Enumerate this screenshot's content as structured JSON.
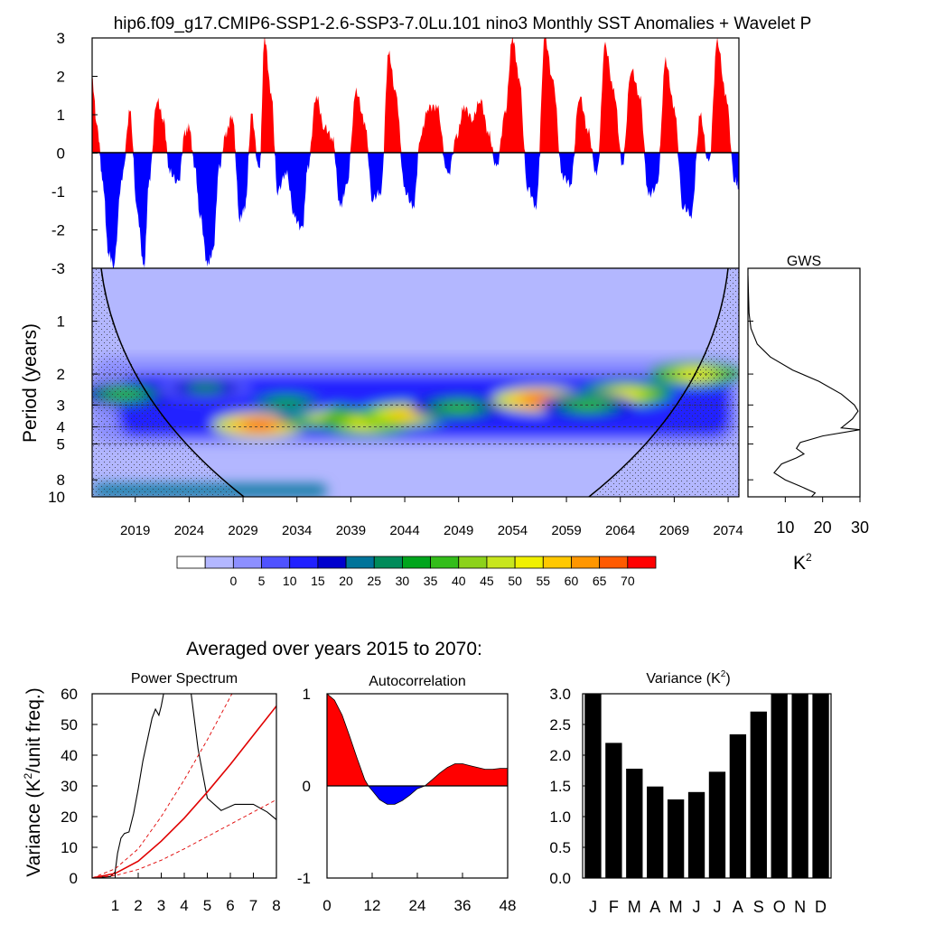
{
  "title": "hip6.f09_g17.CMIP6-SSP1-2.6-SSP3-7.0Lu.101 nino3 Monthly SST Anomalies + Wavelet P",
  "section_title": "Averaged over years 2015 to 2070:",
  "colors": {
    "positive": "#ff0000",
    "negative": "#0000ff",
    "background_level": "#b3b7ff"
  },
  "chart_data": [
    {
      "id": "timeseries",
      "type": "area",
      "title": "",
      "xlabel": "",
      "ylabel": "",
      "xlim": [
        2015,
        2075
      ],
      "ylim": [
        -3,
        3
      ],
      "yticks": [
        "3",
        "2",
        "1",
        "0",
        "-1",
        "-2",
        "-3"
      ],
      "fill_above": "red",
      "fill_below": "blue",
      "series": [
        {
          "x": [
            2015.0,
            2015.5,
            2016.0,
            2016.5,
            2017.0,
            2017.8,
            2018.5,
            2019.2,
            2019.8,
            2020.3,
            2021.0,
            2021.6,
            2022.2,
            2023.0,
            2023.6,
            2024.0,
            2024.5,
            2025.0,
            2025.7,
            2026.2,
            2026.8,
            2027.4,
            2028.0,
            2028.7,
            2029.2,
            2029.8,
            2030.5,
            2031.0,
            2031.6,
            2032.2,
            2033.0,
            2033.8,
            2034.5,
            2035.0,
            2035.8,
            2036.5,
            2037.3,
            2038.0,
            2038.6,
            2039.5,
            2040.3,
            2041.0,
            2041.8,
            2042.5,
            2043.2,
            2044.0,
            2044.8,
            2045.5,
            2046.2,
            2047.0,
            2048.0,
            2048.8,
            2049.5,
            2050.3,
            2051.0,
            2051.8,
            2052.5,
            2053.3,
            2054.0,
            2054.6,
            2055.4,
            2056.2,
            2057.0,
            2057.8,
            2058.6,
            2059.4,
            2060.2,
            2061.0,
            2061.8,
            2062.6,
            2063.4,
            2064.2,
            2065.0,
            2065.8,
            2066.6,
            2067.4,
            2068.2,
            2069.0,
            2069.8,
            2070.6,
            2071.4,
            2072.2,
            2073.0,
            2073.8,
            2074.6,
            2075.0
          ],
          "y": [
            1.9,
            0.6,
            -0.8,
            -2.6,
            -2.9,
            -0.6,
            1.1,
            -1.6,
            -3.0,
            -0.7,
            1.4,
            0.9,
            -0.5,
            -0.8,
            0.5,
            0.7,
            -0.3,
            -1.6,
            -2.9,
            -2.6,
            -0.4,
            0.5,
            1.0,
            -1.7,
            -1.4,
            1.0,
            -0.5,
            3.0,
            1.6,
            -1.0,
            -0.5,
            -1.7,
            -2.0,
            -0.4,
            1.5,
            0.7,
            0.4,
            -1.4,
            -0.9,
            1.6,
            0.8,
            -1.2,
            -1.0,
            2.6,
            1.5,
            -1.0,
            -1.4,
            0.5,
            1.2,
            1.2,
            -0.6,
            0.4,
            1.2,
            0.9,
            1.4,
            0.5,
            -0.4,
            1.0,
            3.0,
            2.0,
            -0.9,
            -1.4,
            3.0,
            1.8,
            -0.6,
            -0.8,
            1.5,
            0.6,
            -0.6,
            2.8,
            1.6,
            -0.3,
            2.2,
            1.5,
            -1.1,
            -0.9,
            2.4,
            1.2,
            -1.4,
            -1.6,
            1.0,
            -0.3,
            2.9,
            1.5,
            -0.7,
            -0.9
          ]
        }
      ]
    },
    {
      "id": "wavelet",
      "type": "heatmap",
      "title": "",
      "ylabel": "Period (years)",
      "xticks": [
        "2019",
        "2024",
        "2029",
        "2034",
        "2039",
        "2044",
        "2049",
        "2054",
        "2059",
        "2064",
        "2069",
        "2074"
      ],
      "xtick_values": [
        2019,
        2024,
        2029,
        2034,
        2039,
        2044,
        2049,
        2054,
        2059,
        2064,
        2069,
        2074
      ],
      "xlim": [
        2015,
        2075
      ],
      "yticks": [
        "1",
        "2",
        "3",
        "4",
        "5",
        "8",
        "10"
      ],
      "ytick_values": [
        1,
        2,
        3,
        4,
        5,
        8,
        10
      ],
      "ylim": [
        0.5,
        10
      ],
      "log_y": true,
      "dashed_periods": [
        2,
        3,
        4,
        5
      ],
      "colorbar_labels": [
        "0",
        "5",
        "10",
        "15",
        "20",
        "25",
        "30",
        "35",
        "40",
        "45",
        "50",
        "55",
        "60",
        "65",
        "70"
      ],
      "colorbar_colors": [
        "#ffffff",
        "#b3b7ff",
        "#8c8fff",
        "#4f52ff",
        "#2020ff",
        "#0000cd",
        "#00749a",
        "#008b5a",
        "#00a51c",
        "#33bd1a",
        "#8cd21a",
        "#c8e61e",
        "#f0f000",
        "#ffc800",
        "#ff9600",
        "#ff5a00",
        "#ff0000"
      ],
      "blobs": [
        {
          "year": 2030.5,
          "period": 3.9,
          "value": 70
        },
        {
          "year": 2036.5,
          "period": 3.5,
          "value": 50
        },
        {
          "year": 2040.5,
          "period": 3.8,
          "value": 55
        },
        {
          "year": 2044.0,
          "period": 3.4,
          "value": 60
        },
        {
          "year": 2049.0,
          "period": 3.1,
          "value": 40
        },
        {
          "year": 2056.5,
          "period": 2.8,
          "value": 70
        },
        {
          "year": 2064.5,
          "period": 2.6,
          "value": 55
        },
        {
          "year": 2071.0,
          "period": 2.0,
          "value": 55
        },
        {
          "year": 2018.0,
          "period": 2.6,
          "value": 40
        },
        {
          "year": 2025.5,
          "period": 2.4,
          "value": 30
        },
        {
          "year": 2033.0,
          "period": 2.9,
          "value": 35
        },
        {
          "year": 2061.0,
          "period": 3.0,
          "value": 40
        }
      ]
    },
    {
      "id": "gws",
      "type": "line",
      "title": "GWS",
      "xlabel": "K",
      "xlabel_sup": "2",
      "xticks": [
        "10",
        "20",
        "30"
      ],
      "xtick_values": [
        10,
        20,
        30
      ],
      "xlim": [
        0,
        30
      ],
      "ylim": [
        0.5,
        10
      ],
      "log_y": true,
      "series": [
        {
          "x": [
            0.0,
            0.3,
            0.8,
            2.5,
            6.0,
            12.0,
            19.0,
            25.0,
            28.5,
            29.5,
            28.0,
            25.0,
            30.0,
            20.0,
            14.0,
            13.0,
            15.0,
            13.0,
            9.0,
            7.0,
            10.0,
            14.0,
            18.0,
            17.0
          ],
          "y": [
            0.55,
            0.9,
            1.1,
            1.35,
            1.6,
            1.9,
            2.2,
            2.6,
            3.0,
            3.25,
            3.6,
            4.05,
            4.15,
            4.5,
            4.9,
            5.3,
            5.7,
            6.0,
            6.5,
            7.3,
            8.0,
            8.7,
            9.5,
            10.0
          ]
        }
      ]
    },
    {
      "id": "power_spectrum",
      "type": "line",
      "title": "Power Spectrum",
      "ylabel": "Variance (K",
      "ylabel_sup": "2",
      "ylabel_tail": "/unit freq.)",
      "xticks": [
        "1",
        "2",
        "3",
        "4",
        "5",
        "6",
        "7",
        "8"
      ],
      "xtick_values": [
        1,
        2,
        3,
        4,
        5,
        6,
        7,
        8
      ],
      "yticks": [
        "0",
        "10",
        "20",
        "30",
        "40",
        "50",
        "60"
      ],
      "ytick_values": [
        0,
        10,
        20,
        30,
        40,
        50,
        60
      ],
      "xlim": [
        0,
        8
      ],
      "ylim": [
        0,
        60
      ],
      "series": [
        {
          "style": "black",
          "x": [
            0.0,
            0.8,
            1.0,
            1.1,
            1.25,
            1.4,
            1.6,
            1.8,
            2.0,
            2.2,
            2.4,
            2.6,
            2.75,
            2.9,
            3.0,
            3.1,
            3.25,
            3.4,
            4.3,
            4.6,
            5.0,
            5.6,
            6.2,
            7.0,
            7.6,
            8.0
          ],
          "y": [
            0.0,
            0.5,
            2.0,
            8.0,
            13.0,
            14.5,
            15.0,
            21.0,
            29.0,
            38.0,
            45.0,
            52.0,
            55.0,
            53.0,
            56.0,
            60.0,
            62.0,
            62.0,
            60.0,
            42.0,
            26.0,
            22.0,
            24.0,
            24.0,
            21.5,
            19.0
          ]
        },
        {
          "style": "red",
          "x": [
            0.0,
            1.0,
            2.0,
            3.0,
            4.0,
            5.0,
            6.0,
            7.0,
            8.0
          ],
          "y": [
            0.0,
            1.5,
            5.5,
            12.0,
            19.5,
            28.0,
            37.0,
            46.5,
            56.0
          ]
        },
        {
          "style": "red-dashed",
          "x": [
            0.0,
            1.0,
            2.0,
            3.0,
            4.0,
            5.0,
            6.0,
            6.5
          ],
          "y": [
            0.0,
            3.0,
            9.5,
            20.0,
            32.0,
            45.0,
            59.0,
            66.0
          ]
        },
        {
          "style": "red-dashed",
          "x": [
            0.0,
            1.0,
            2.0,
            3.0,
            4.0,
            5.0,
            6.0,
            7.0,
            8.0
          ],
          "y": [
            0.0,
            0.8,
            2.8,
            5.8,
            9.5,
            13.5,
            17.5,
            21.5,
            25.5
          ]
        }
      ]
    },
    {
      "id": "autocorrelation",
      "type": "area",
      "title": "Autocorrelation",
      "xticks": [
        "0",
        "12",
        "24",
        "36",
        "48"
      ],
      "xtick_values": [
        0,
        12,
        24,
        36,
        48
      ],
      "yticks": [
        "1",
        "0",
        "-1"
      ],
      "ytick_values": [
        1,
        0,
        -1
      ],
      "xlim": [
        0,
        48
      ],
      "ylim": [
        -1,
        1
      ],
      "fill_above": "red",
      "fill_below": "blue",
      "series": [
        {
          "x": [
            0,
            2,
            4,
            6,
            8,
            10,
            11,
            12,
            14,
            16,
            18,
            20,
            22,
            24,
            26,
            28,
            30,
            32,
            34,
            36,
            38,
            40,
            42,
            44,
            46,
            48
          ],
          "y": [
            1.0,
            0.93,
            0.77,
            0.54,
            0.3,
            0.07,
            0.0,
            -0.05,
            -0.15,
            -0.2,
            -0.2,
            -0.16,
            -0.1,
            -0.03,
            0.0,
            0.07,
            0.14,
            0.2,
            0.24,
            0.24,
            0.22,
            0.2,
            0.18,
            0.18,
            0.19,
            0.19
          ]
        }
      ]
    },
    {
      "id": "variance",
      "type": "bar",
      "title": "Variance (K",
      "title_sup": "2",
      "title_tail": ")",
      "categories": [
        "J",
        "F",
        "M",
        "A",
        "M",
        "J",
        "J",
        "A",
        "S",
        "O",
        "N",
        "D"
      ],
      "values": [
        3.0,
        2.2,
        1.78,
        1.49,
        1.28,
        1.4,
        1.73,
        2.34,
        2.71,
        3.0,
        3.0,
        3.0
      ],
      "yticks": [
        "3.0",
        "2.5",
        "2.0",
        "1.5",
        "1.0",
        "0.5",
        "0.0"
      ],
      "ytick_values": [
        3.0,
        2.5,
        2.0,
        1.5,
        1.0,
        0.5,
        0.0
      ],
      "ylim": [
        0,
        3.0
      ]
    }
  ]
}
